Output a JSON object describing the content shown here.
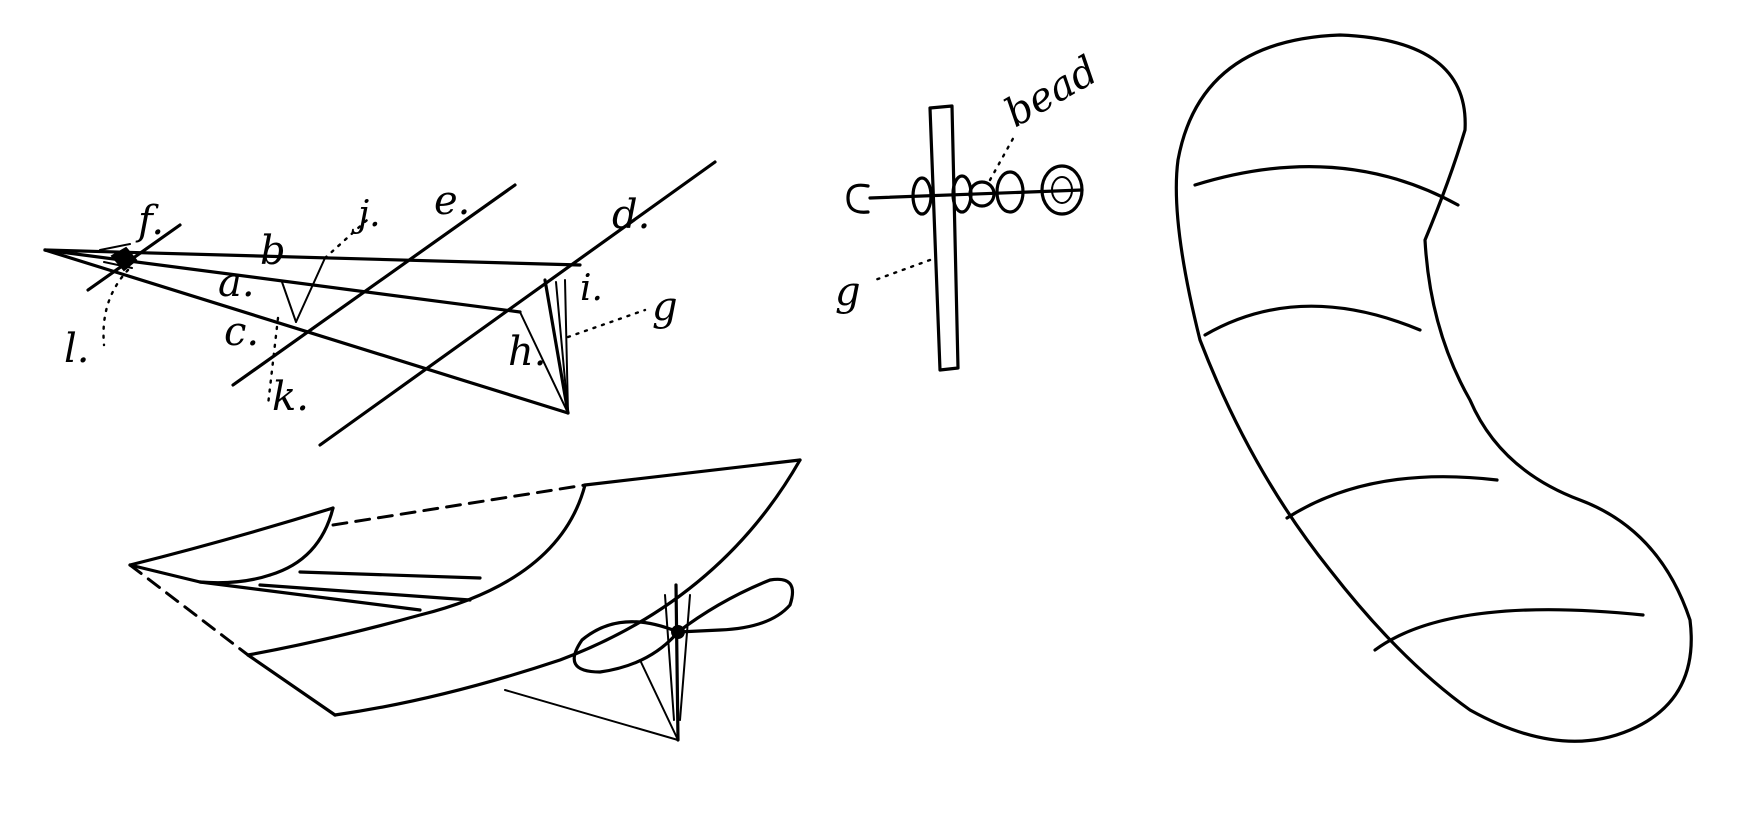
{
  "frame_diagram": {
    "labels": {
      "a": "a.",
      "b": "b",
      "c": "c.",
      "d": "d.",
      "e": "e.",
      "f": "f.",
      "g": "g",
      "h": "h.",
      "i": "i.",
      "j": "j.",
      "k": "k.",
      "l": "l."
    }
  },
  "propeller_shaft_detail": {
    "labels": {
      "bead": "bead",
      "g": "g"
    }
  }
}
